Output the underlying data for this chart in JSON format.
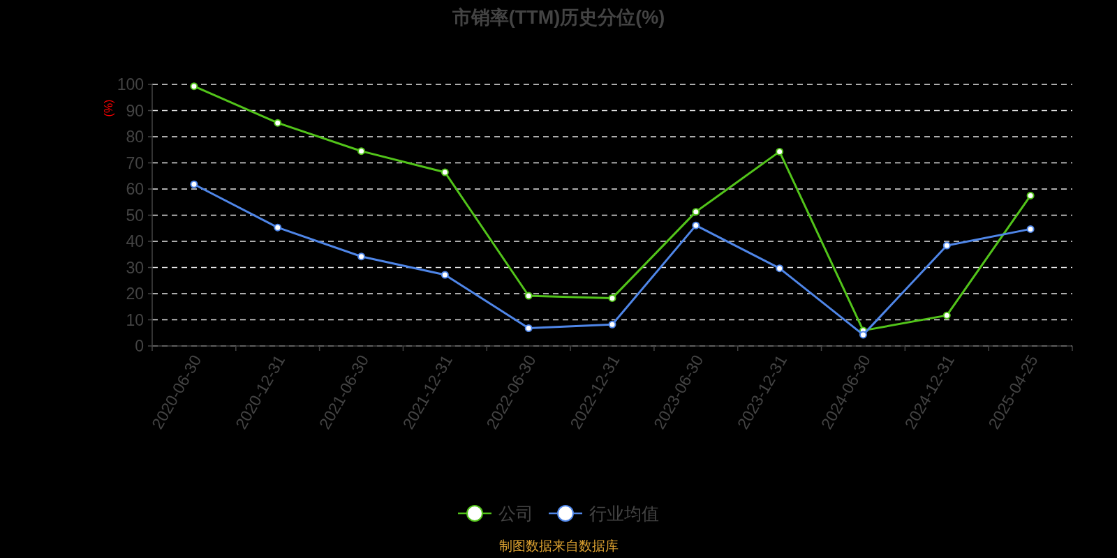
{
  "chart_data": {
    "type": "line",
    "title": "市销率(TTM)历史分位(%)",
    "ylabel": "(%)",
    "categories": [
      "2020-06-30",
      "2020-12-31",
      "2021-06-30",
      "2021-12-31",
      "2022-06-30",
      "2022-12-31",
      "2023-06-30",
      "2023-12-31",
      "2024-06-30",
      "2024-12-31",
      "2025-04-25"
    ],
    "series": [
      {
        "name": "公司",
        "color": "#52c41a",
        "values": [
          99.3,
          85.3,
          74.5,
          66.4,
          19.2,
          18.3,
          51.3,
          74.3,
          5.9,
          11.7,
          57.5
        ]
      },
      {
        "name": "行业均值",
        "color": "#4f86e8",
        "values": [
          61.8,
          45.3,
          34.2,
          27.2,
          6.8,
          8.2,
          46.1,
          29.7,
          4.3,
          38.4,
          44.7
        ]
      }
    ],
    "ylim": [
      0,
      100
    ],
    "yticks": [
      0,
      10,
      20,
      30,
      40,
      50,
      60,
      70,
      80,
      90,
      100
    ],
    "grid": "y",
    "legend": "bottom",
    "marker": "circle",
    "line_style": "solid",
    "annotations": [
      "制图数据来自数据库"
    ]
  }
}
